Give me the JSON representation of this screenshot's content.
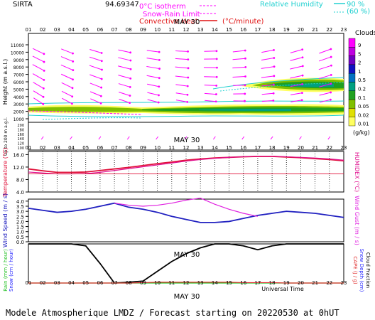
{
  "header": {
    "station": "SIRTA",
    "coords": "94.69347",
    "legend_isotherm": "0°C isotherm",
    "legend_snowrain": "Snow-Rain Limit",
    "legend_convective": "Convective Heat",
    "legend_convective_unit": "(°C/minute)",
    "legend_rh": "Relative Humidity",
    "rh_90": "90 %",
    "rh_60": "(60 %)"
  },
  "date_label": "MAY 30",
  "hours": [
    "01",
    "02",
    "03",
    "04",
    "05",
    "06",
    "07",
    "08",
    "09",
    "10",
    "11",
    "12",
    "13",
    "14",
    "15",
    "16",
    "17",
    "18",
    "19",
    "20",
    "21",
    "22",
    "23"
  ],
  "footer": {
    "xaxis_title": "Universal Time",
    "model_line": "Modele Atmospherique LMDZ / Forecast starting on 20220530 at 0hUT"
  },
  "colors": {
    "temperature": "#e0103a",
    "humidex": "#e01090",
    "wind_speed": "#2020c0",
    "wind_gust": "#e020e0",
    "rain": "#20c020",
    "snow": "#2020ff",
    "cloud_fraction": "#000000",
    "cape": "#e03030",
    "wind_arrow": "#ff00ff",
    "humidity": "#00e0e0"
  },
  "panel_height": {
    "ylabel": "Height (m a.s.l.)",
    "ylabel_lower": "Up to 200 m a.g.l.",
    "yticks_upper": [
      "11000",
      "10000",
      "9000",
      "8000",
      "7000",
      "6000",
      "5000",
      "4000",
      "3000",
      "2000",
      "1000"
    ],
    "yticks_lower": [
      "200",
      "180",
      "160",
      "140",
      "120",
      "100"
    ],
    "cloud_legend_title": "Clouds",
    "cloud_legend_unit": "(g/kg)",
    "cloud_levels": [
      "9",
      "5",
      "2",
      "1",
      "0.5",
      "0.2",
      "0.1",
      "0.05",
      "0.02",
      "0.01"
    ],
    "cloud_colors": [
      "#ff00ff",
      "#c000e0",
      "#7000c0",
      "#1010c0",
      "#0070c0",
      "#00a080",
      "#20a020",
      "#80c000",
      "#e0e000",
      "#ffff60"
    ]
  },
  "panel_temp": {
    "ylabel_left": "Temperature (°C)",
    "ylabel_right": "HUMIDEX (°C)",
    "yticks": [
      "16.0",
      "12.0",
      "8.0",
      "4.0"
    ]
  },
  "panel_wind": {
    "ylabel_left": "Wind Speed (m / s)",
    "ylabel_right": "Wind Gust (m / s)",
    "yticks": [
      "4.0",
      "3.5",
      "3.0",
      "2.5",
      "2.0",
      "1.5",
      "1.0",
      "0.5",
      "0.0"
    ]
  },
  "panel_rain": {
    "ylabel_left_1": "Rain (mm / hour)",
    "ylabel_left_2": "Snow (cm / hour)",
    "ylabel_right_1": "CAPE (J / g)",
    "ylabel_right_2": "Snow Depth (cm)",
    "ylabel_right_3": "Cloud Fraction"
  },
  "chart_data": [
    {
      "type": "line",
      "title": "Temperature / Humidex",
      "x": [
        1,
        2,
        3,
        4,
        5,
        6,
        7,
        8,
        9,
        10,
        11,
        12,
        13,
        14,
        15,
        16,
        17,
        18,
        19,
        20,
        21,
        22,
        23
      ],
      "ylim": [
        4,
        17
      ],
      "series": [
        {
          "name": "Temperature",
          "values": [
            11.4,
            10.8,
            10.3,
            10.3,
            10.4,
            10.9,
            11.4,
            11.9,
            12.5,
            13.1,
            13.6,
            14.2,
            14.6,
            14.9,
            15.1,
            15.3,
            15.4,
            15.4,
            15.2,
            15.0,
            14.7,
            14.4,
            14.0
          ]
        },
        {
          "name": "HUMIDEX",
          "values": [
            10.4,
            10.1,
            9.8,
            9.8,
            9.9,
            10.3,
            10.9,
            11.5,
            12.1,
            12.7,
            13.3,
            13.9,
            14.4,
            14.8,
            15.1,
            15.3,
            15.5,
            15.5,
            15.3,
            15.1,
            14.9,
            14.6,
            14.2
          ]
        }
      ]
    },
    {
      "type": "line",
      "title": "Wind Speed / Wind Gust",
      "x": [
        1,
        2,
        3,
        4,
        5,
        6,
        7,
        8,
        9,
        10,
        11,
        12,
        13,
        14,
        15,
        16,
        17,
        18,
        19,
        20,
        21,
        22,
        23
      ],
      "ylim": [
        0,
        4.2
      ],
      "series": [
        {
          "name": "Wind Speed",
          "values": [
            3.3,
            3.1,
            2.9,
            3.0,
            3.2,
            3.5,
            3.8,
            3.4,
            3.2,
            2.9,
            2.5,
            2.2,
            1.9,
            1.9,
            2.0,
            2.3,
            2.6,
            2.8,
            3.0,
            2.9,
            2.8,
            2.6,
            2.4
          ]
        },
        {
          "name": "Wind Gust",
          "values": [
            null,
            null,
            null,
            null,
            null,
            null,
            3.8,
            3.6,
            3.5,
            3.6,
            3.8,
            4.1,
            4.3,
            3.7,
            3.2,
            2.8,
            2.5,
            null,
            null,
            null,
            null,
            null,
            null
          ]
        }
      ]
    },
    {
      "type": "line",
      "title": "Rain / Snow / Cloud Fraction",
      "x": [
        1,
        2,
        3,
        4,
        5,
        6,
        7,
        8,
        9,
        10,
        11,
        12,
        13,
        14,
        15,
        16,
        17,
        18,
        19,
        20,
        21,
        22,
        23
      ],
      "ylim": [
        0,
        1
      ],
      "series": [
        {
          "name": "Cloud Fraction",
          "values": [
            1.0,
            1.0,
            1.0,
            1.0,
            0.95,
            0.5,
            0.0,
            0.02,
            0.05,
            0.3,
            0.55,
            0.75,
            0.9,
            1.0,
            1.0,
            0.95,
            0.85,
            0.95,
            1.0,
            1.0,
            1.0,
            1.0,
            1.0
          ]
        },
        {
          "name": "Rain",
          "values": [
            0,
            0,
            0,
            0,
            0,
            0,
            0,
            0,
            0,
            0,
            0,
            0,
            0,
            0,
            0,
            0,
            0,
            0,
            0,
            0,
            0,
            0,
            0
          ]
        },
        {
          "name": "CAPE",
          "values": [
            0,
            0,
            0,
            0,
            0,
            0,
            0,
            0,
            0.01,
            0.02,
            0.02,
            0.02,
            0.02,
            0.02,
            0.02,
            0.01,
            0.01,
            0.01,
            0,
            0,
            0,
            0,
            0
          ]
        }
      ]
    }
  ]
}
